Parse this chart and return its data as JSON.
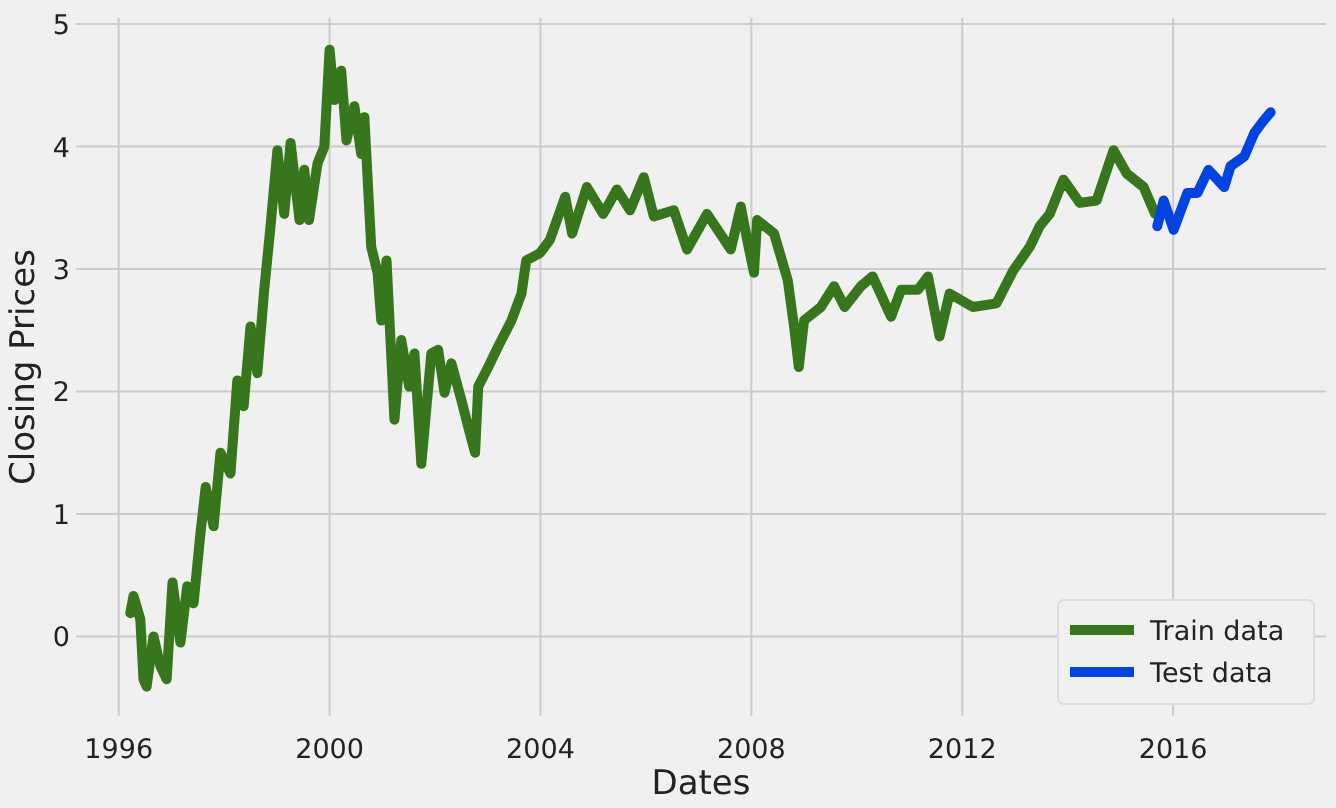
{
  "chart_data": {
    "type": "line",
    "xlabel": "Dates",
    "ylabel": "Closing Prices",
    "xlim": [
      1995.19,
      2018.9
    ],
    "xticks": [
      1996,
      2000,
      2004,
      2008,
      2012,
      2016
    ],
    "ylim": [
      -0.65,
      5.05
    ],
    "yticks": [
      0,
      1,
      2,
      3,
      4,
      5
    ],
    "grid": true,
    "legend": "bottom right",
    "line_style": "solid",
    "marker": "none",
    "series": [
      {
        "name": "Train data",
        "color": "#38761d",
        "x": [
          1996.22,
          1996.28,
          1996.41,
          1996.47,
          1996.53,
          1996.66,
          1996.79,
          1996.91,
          1997.02,
          1997.17,
          1997.3,
          1997.42,
          1997.55,
          1997.65,
          1997.8,
          1997.93,
          1998.12,
          1998.25,
          1998.37,
          1998.5,
          1998.63,
          1998.76,
          1998.88,
          1999.01,
          1999.14,
          1999.26,
          1999.43,
          1999.52,
          1999.61,
          1999.77,
          1999.9,
          2000.0,
          2000.09,
          2000.22,
          2000.32,
          2000.47,
          2000.6,
          2000.66,
          2000.79,
          2000.91,
          2000.98,
          2001.08,
          2001.23,
          2001.36,
          2001.51,
          2001.61,
          2001.74,
          2001.93,
          2002.06,
          2002.18,
          2002.31,
          2002.5,
          2002.63,
          2002.76,
          2002.82,
          2003.01,
          2003.2,
          2003.45,
          2003.64,
          2003.73,
          2003.99,
          2004.18,
          2004.47,
          2004.6,
          2004.88,
          2005.19,
          2005.45,
          2005.7,
          2005.96,
          2006.15,
          2006.53,
          2006.78,
          2007.16,
          2007.61,
          2007.8,
          2007.92,
          2008.05,
          2008.11,
          2008.43,
          2008.69,
          2008.81,
          2008.9,
          2009.0,
          2009.32,
          2009.57,
          2009.77,
          2010.08,
          2010.3,
          2010.65,
          2010.84,
          2011.16,
          2011.35,
          2011.57,
          2011.76,
          2012.2,
          2012.65,
          2012.97,
          2013.28,
          2013.47,
          2013.66,
          2013.92,
          2014.23,
          2014.55,
          2014.87,
          2015.12,
          2015.44,
          2015.66
        ],
        "values": [
          0.19,
          0.33,
          0.14,
          -0.35,
          -0.41,
          0.0,
          -0.24,
          -0.35,
          0.44,
          -0.05,
          0.41,
          0.27,
          0.84,
          1.22,
          0.9,
          1.5,
          1.33,
          2.09,
          1.88,
          2.53,
          2.15,
          2.83,
          3.35,
          3.97,
          3.45,
          4.03,
          3.4,
          3.81,
          3.4,
          3.86,
          4.0,
          4.79,
          4.38,
          4.62,
          4.05,
          4.33,
          3.94,
          4.24,
          3.18,
          2.97,
          2.58,
          3.07,
          1.77,
          2.42,
          2.04,
          2.31,
          1.41,
          2.31,
          2.34,
          1.99,
          2.23,
          1.93,
          1.71,
          1.5,
          2.04,
          2.2,
          2.37,
          2.58,
          2.8,
          3.07,
          3.13,
          3.24,
          3.59,
          3.29,
          3.67,
          3.45,
          3.65,
          3.48,
          3.75,
          3.43,
          3.48,
          3.16,
          3.45,
          3.16,
          3.51,
          3.24,
          2.97,
          3.4,
          3.29,
          2.91,
          2.53,
          2.2,
          2.58,
          2.69,
          2.86,
          2.69,
          2.86,
          2.94,
          2.61,
          2.83,
          2.83,
          2.94,
          2.45,
          2.8,
          2.69,
          2.72,
          2.99,
          3.18,
          3.35,
          3.45,
          3.73,
          3.54,
          3.56,
          3.97,
          3.78,
          3.67,
          3.45
        ]
      },
      {
        "name": "Test data",
        "color": "#0343df",
        "x": [
          2015.7,
          2015.82,
          2016.01,
          2016.27,
          2016.46,
          2016.67,
          2016.97,
          2017.09,
          2017.35,
          2017.54,
          2017.73,
          2017.85
        ],
        "values": [
          3.35,
          3.56,
          3.32,
          3.62,
          3.62,
          3.81,
          3.67,
          3.84,
          3.92,
          4.11,
          4.22,
          4.28
        ]
      }
    ]
  }
}
